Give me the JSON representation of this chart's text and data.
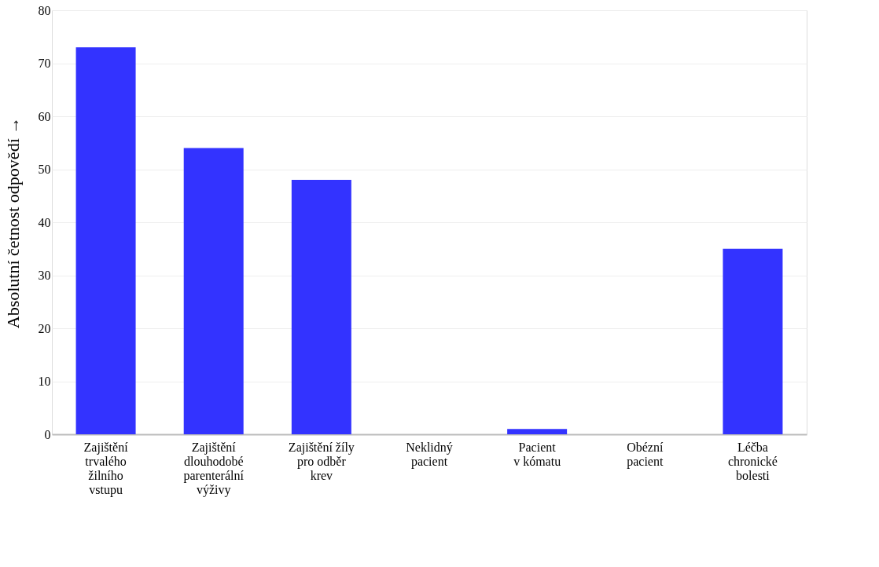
{
  "chart_data": {
    "type": "bar",
    "ylabel": "Absolutní četnost odpovědí  →",
    "categories": [
      "Zajištění\ntrvalého\nžilního\nvstupu",
      "Zajištění\ndlouhodobé\nparenterální\nvýživy",
      "Zajištění žíly\npro odběr\nkrev",
      "Neklidný\npacient",
      "Pacient\nv kómatu",
      "Obézní\npacient",
      "Léčba\nchronické\nbolesti"
    ],
    "values": [
      73,
      54,
      48,
      0,
      1,
      0,
      35
    ],
    "color": "#3333ff",
    "ylim": [
      0,
      80
    ],
    "yticks": [
      0,
      10,
      20,
      30,
      40,
      50,
      60,
      70,
      80
    ],
    "grid": "y"
  }
}
